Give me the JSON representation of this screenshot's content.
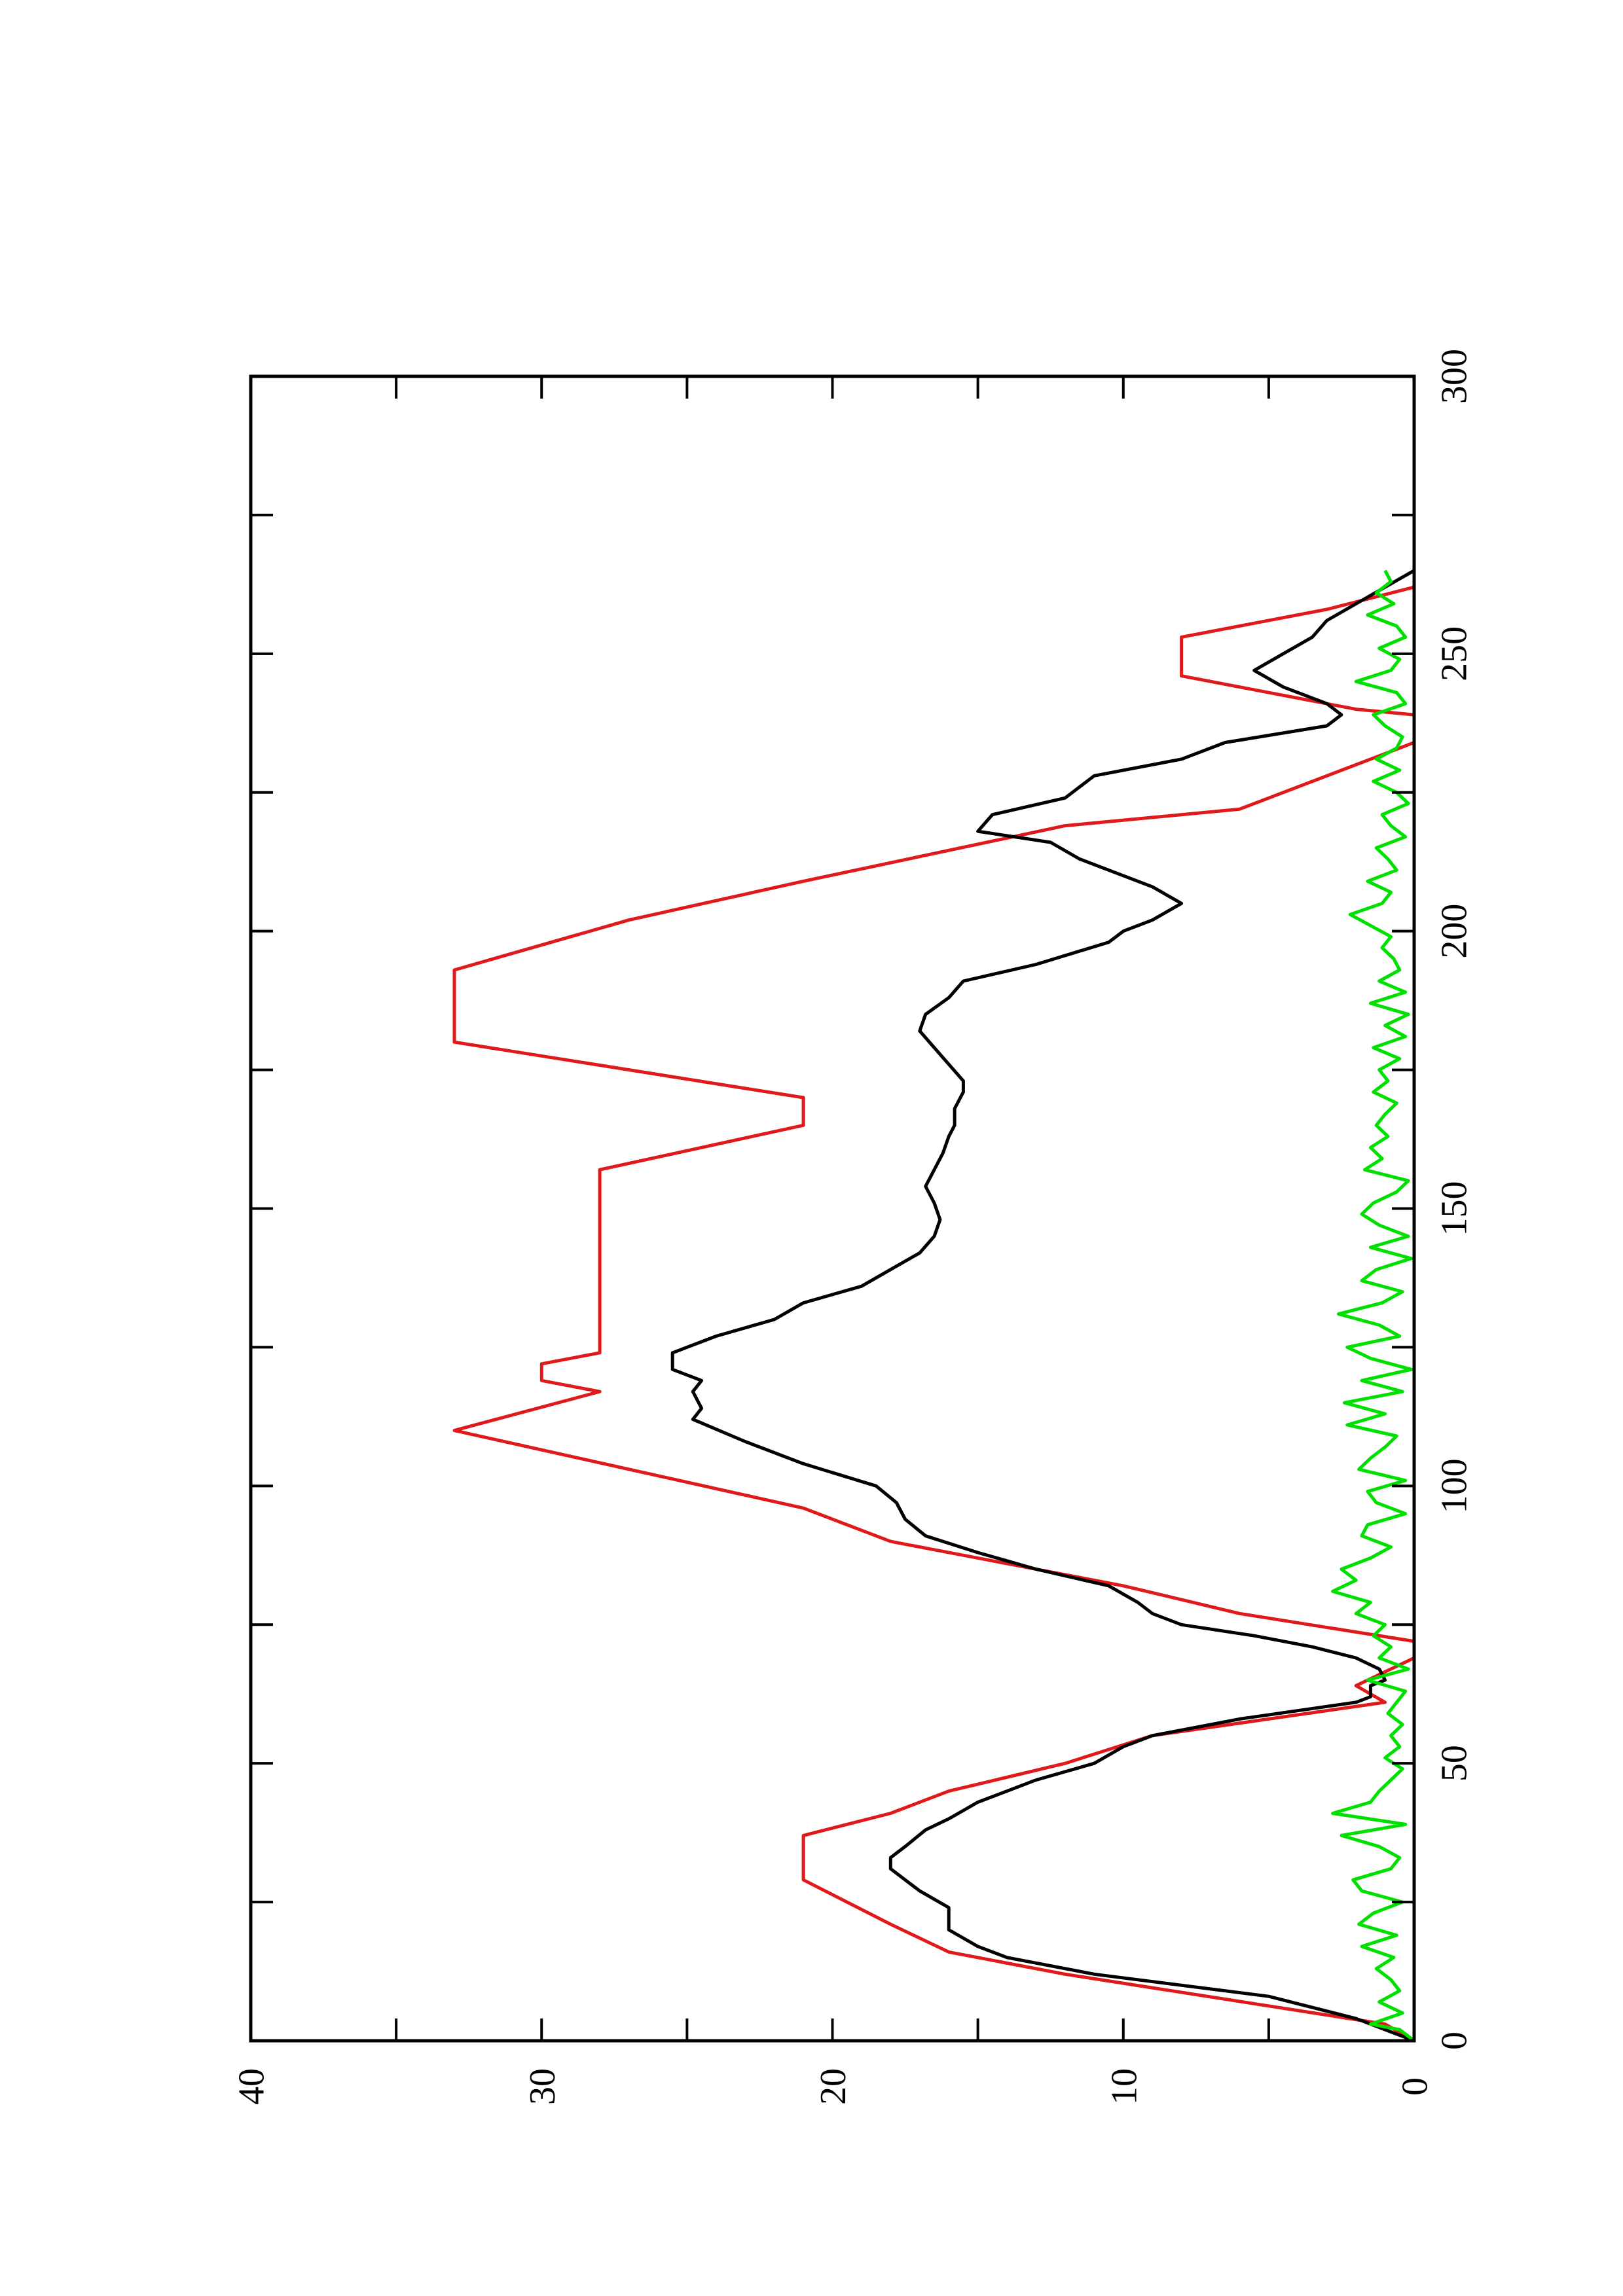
{
  "chart_data": {
    "type": "line",
    "orientation": "rotated-90-ccw",
    "title": "",
    "xlabel": "",
    "ylabel": "",
    "xlim": [
      0,
      300
    ],
    "ylim": [
      0,
      40
    ],
    "x_ticks": [
      0,
      50,
      100,
      150,
      200,
      250,
      300
    ],
    "x_tick_labels": [
      "0",
      "50",
      "100",
      "150",
      "200",
      "250",
      "300"
    ],
    "y_ticks": [
      0,
      10,
      20,
      30,
      40
    ],
    "y_tick_labels": [
      "0",
      "10",
      "20",
      "30",
      "40"
    ],
    "grid": false,
    "legend": "none",
    "series": [
      {
        "color": "#e0191b",
        "points": [
          [
            0,
            0
          ],
          [
            3,
            1
          ],
          [
            12,
            12
          ],
          [
            16,
            16
          ],
          [
            21,
            18
          ],
          [
            29,
            21
          ],
          [
            37,
            21
          ],
          [
            41,
            18
          ],
          [
            45,
            16
          ],
          [
            50,
            12
          ],
          [
            55,
            9
          ],
          [
            61,
            1
          ],
          [
            64,
            2
          ],
          [
            69,
            0
          ],
          [
            72,
            0
          ],
          [
            77,
            6
          ],
          [
            82,
            10
          ],
          [
            90,
            18
          ],
          [
            96,
            21
          ],
          [
            110,
            33
          ],
          [
            117,
            28
          ],
          [
            119,
            30
          ],
          [
            122,
            30
          ],
          [
            124,
            28
          ],
          [
            157,
            28
          ],
          [
            165,
            21
          ],
          [
            170,
            21
          ],
          [
            180,
            33
          ],
          [
            193,
            33
          ],
          [
            202,
            27
          ],
          [
            209,
            21
          ],
          [
            219,
            12
          ],
          [
            222,
            6
          ],
          [
            234,
            0
          ],
          [
            239,
            0
          ],
          [
            240,
            2
          ],
          [
            246,
            8
          ],
          [
            253,
            8
          ],
          [
            258,
            3
          ],
          [
            262,
            0
          ]
        ]
      },
      {
        "color": "#000000",
        "points": [
          [
            0,
            0
          ],
          [
            4,
            2
          ],
          [
            8,
            5
          ],
          [
            12,
            11
          ],
          [
            15,
            14
          ],
          [
            17,
            15
          ],
          [
            20,
            16
          ],
          [
            24,
            16
          ],
          [
            27,
            17
          ],
          [
            31,
            18
          ],
          [
            33,
            18
          ],
          [
            35,
            17.5
          ],
          [
            38,
            16.8
          ],
          [
            40,
            16
          ],
          [
            43,
            15
          ],
          [
            45,
            14
          ],
          [
            47,
            13
          ],
          [
            50,
            11
          ],
          [
            53,
            10
          ],
          [
            55,
            9
          ],
          [
            58,
            6
          ],
          [
            61,
            2
          ],
          [
            62,
            1.5
          ],
          [
            64,
            1.5
          ],
          [
            65,
            1.0
          ],
          [
            67,
            1.2
          ],
          [
            69,
            2.0
          ],
          [
            71,
            3.5
          ],
          [
            73,
            5.5
          ],
          [
            75,
            8
          ],
          [
            77,
            9
          ],
          [
            79,
            9.5
          ],
          [
            82,
            10.5
          ],
          [
            85,
            13
          ],
          [
            88,
            15
          ],
          [
            91,
            16.8
          ],
          [
            94,
            17.5
          ],
          [
            97,
            17.8
          ],
          [
            100,
            18.5
          ],
          [
            104,
            21
          ],
          [
            108,
            23
          ],
          [
            112,
            24.8
          ],
          [
            114,
            24.5
          ],
          [
            117,
            24.8
          ],
          [
            119,
            24.5
          ],
          [
            121,
            25.5
          ],
          [
            124,
            25.5
          ],
          [
            127,
            24
          ],
          [
            130,
            22
          ],
          [
            133,
            21
          ],
          [
            136,
            19
          ],
          [
            139,
            18
          ],
          [
            142,
            17
          ],
          [
            145,
            16.5
          ],
          [
            148,
            16.3
          ],
          [
            151,
            16.5
          ],
          [
            154,
            16.8
          ],
          [
            157,
            16.5
          ],
          [
            160,
            16.2
          ],
          [
            163,
            16
          ],
          [
            165,
            15.8
          ],
          [
            168,
            15.8
          ],
          [
            171,
            15.5
          ],
          [
            173,
            15.5
          ],
          [
            176,
            16
          ],
          [
            179,
            16.5
          ],
          [
            182,
            17.0
          ],
          [
            185,
            16.8
          ],
          [
            188,
            16.0
          ],
          [
            191,
            15.5
          ],
          [
            194,
            13
          ],
          [
            198,
            10.5
          ],
          [
            200,
            10
          ],
          [
            202,
            9
          ],
          [
            205,
            8
          ],
          [
            208,
            9
          ],
          [
            211,
            10.5
          ],
          [
            213,
            11.5
          ],
          [
            216,
            12.5
          ],
          [
            218,
            15
          ],
          [
            221,
            14.5
          ],
          [
            224,
            12
          ],
          [
            228,
            11
          ],
          [
            231,
            8
          ],
          [
            234,
            6.5
          ],
          [
            237,
            3
          ],
          [
            239,
            2.5
          ],
          [
            241,
            3
          ],
          [
            244,
            4.5
          ],
          [
            247,
            5.5
          ],
          [
            250,
            4.5
          ],
          [
            253,
            3.5
          ],
          [
            256,
            3
          ],
          [
            259,
            2
          ],
          [
            262,
            1
          ],
          [
            265,
            0
          ]
        ]
      },
      {
        "color": "#00e000",
        "points": [
          [
            0,
            0
          ],
          [
            2,
            0.5
          ],
          [
            3,
            1.5
          ],
          [
            5,
            0.4
          ],
          [
            7,
            1.2
          ],
          [
            9,
            0.5
          ],
          [
            11,
            0.8
          ],
          [
            13,
            1.3
          ],
          [
            15,
            0.7
          ],
          [
            17,
            1.8
          ],
          [
            19,
            0.6
          ],
          [
            21,
            1.9
          ],
          [
            23,
            1.4
          ],
          [
            25,
            0.4
          ],
          [
            27,
            1.8
          ],
          [
            29,
            2.1
          ],
          [
            31,
            0.8
          ],
          [
            33,
            0.5
          ],
          [
            35,
            1.2
          ],
          [
            37,
            2.5
          ],
          [
            39,
            0.3
          ],
          [
            41,
            2.8
          ],
          [
            43,
            1.5
          ],
          [
            45,
            1.2
          ],
          [
            47,
            0.8
          ],
          [
            49,
            0.4
          ],
          [
            51,
            1
          ],
          [
            53,
            0.5
          ],
          [
            55,
            0.8
          ],
          [
            57,
            0.4
          ],
          [
            59,
            0.9
          ],
          [
            61,
            0.6
          ],
          [
            63,
            0.3
          ],
          [
            65,
            1.6
          ],
          [
            67,
            0.2
          ],
          [
            69,
            1.2
          ],
          [
            71,
            0.8
          ],
          [
            73,
            1.4
          ],
          [
            75,
            1.0
          ],
          [
            77,
            2.0
          ],
          [
            79,
            1.5
          ],
          [
            81,
            2.8
          ],
          [
            83,
            2.0
          ],
          [
            85,
            2.5
          ],
          [
            87,
            1.5
          ],
          [
            89,
            0.8
          ],
          [
            91,
            1.8
          ],
          [
            93,
            1.6
          ],
          [
            95,
            0.3
          ],
          [
            97,
            1.3
          ],
          [
            99,
            1.6
          ],
          [
            101,
            0.3
          ],
          [
            103,
            1.9
          ],
          [
            105,
            1.5
          ],
          [
            107,
            1.0
          ],
          [
            109,
            0.6
          ],
          [
            111,
            2.3
          ],
          [
            113,
            1.0
          ],
          [
            115,
            2.4
          ],
          [
            117,
            0.4
          ],
          [
            119,
            1.8
          ],
          [
            121,
            0.1
          ],
          [
            123,
            1.5
          ],
          [
            125,
            2.3
          ],
          [
            127,
            0.5
          ],
          [
            129,
            1.2
          ],
          [
            131,
            2.6
          ],
          [
            133,
            1.1
          ],
          [
            135,
            0.4
          ],
          [
            137,
            1.8
          ],
          [
            139,
            1.3
          ],
          [
            141,
            0.1
          ],
          [
            143,
            1.5
          ],
          [
            145,
            0.2
          ],
          [
            147,
            1.2
          ],
          [
            149,
            1.8
          ],
          [
            151,
            1.4
          ],
          [
            153,
            0.6
          ],
          [
            155,
            0.2
          ],
          [
            157,
            1.7
          ],
          [
            159,
            1.1
          ],
          [
            161,
            1.5
          ],
          [
            163,
            0.9
          ],
          [
            165,
            1.3
          ],
          [
            167,
            1.0
          ],
          [
            169,
            0.6
          ],
          [
            171,
            1.4
          ],
          [
            173,
            0.9
          ],
          [
            175,
            1.2
          ],
          [
            177,
            0.5
          ],
          [
            179,
            1.4
          ],
          [
            181,
            0.3
          ],
          [
            183,
            1.0
          ],
          [
            185,
            0.2
          ],
          [
            187,
            1.5
          ],
          [
            189,
            0.3
          ],
          [
            191,
            1.2
          ],
          [
            193,
            0.5
          ],
          [
            195,
            0.7
          ],
          [
            197,
            1.1
          ],
          [
            199,
            0.8
          ],
          [
            201,
            1.5
          ],
          [
            203,
            2.2
          ],
          [
            205,
            1.1
          ],
          [
            207,
            0.8
          ],
          [
            209,
            1.6
          ],
          [
            211,
            0.6
          ],
          [
            213,
            0.9
          ],
          [
            215,
            1.3
          ],
          [
            217,
            0.3
          ],
          [
            219,
            0.8
          ],
          [
            221,
            1.1
          ],
          [
            223,
            0.2
          ],
          [
            225,
            0.6
          ],
          [
            227,
            1.4
          ],
          [
            229,
            0.5
          ],
          [
            231,
            1.3
          ],
          [
            233,
            0.6
          ],
          [
            235,
            0.4
          ],
          [
            237,
            1.0
          ],
          [
            239,
            1.4
          ],
          [
            241,
            0.3
          ],
          [
            243,
            0.6
          ],
          [
            245,
            2.0
          ],
          [
            247,
            0.8
          ],
          [
            249,
            0.5
          ],
          [
            251,
            1.2
          ],
          [
            253,
            0.3
          ],
          [
            255,
            0.6
          ],
          [
            257,
            1.6
          ],
          [
            259,
            0.7
          ],
          [
            261,
            1.3
          ],
          [
            263,
            0.8
          ],
          [
            265,
            1.0
          ]
        ]
      }
    ]
  }
}
